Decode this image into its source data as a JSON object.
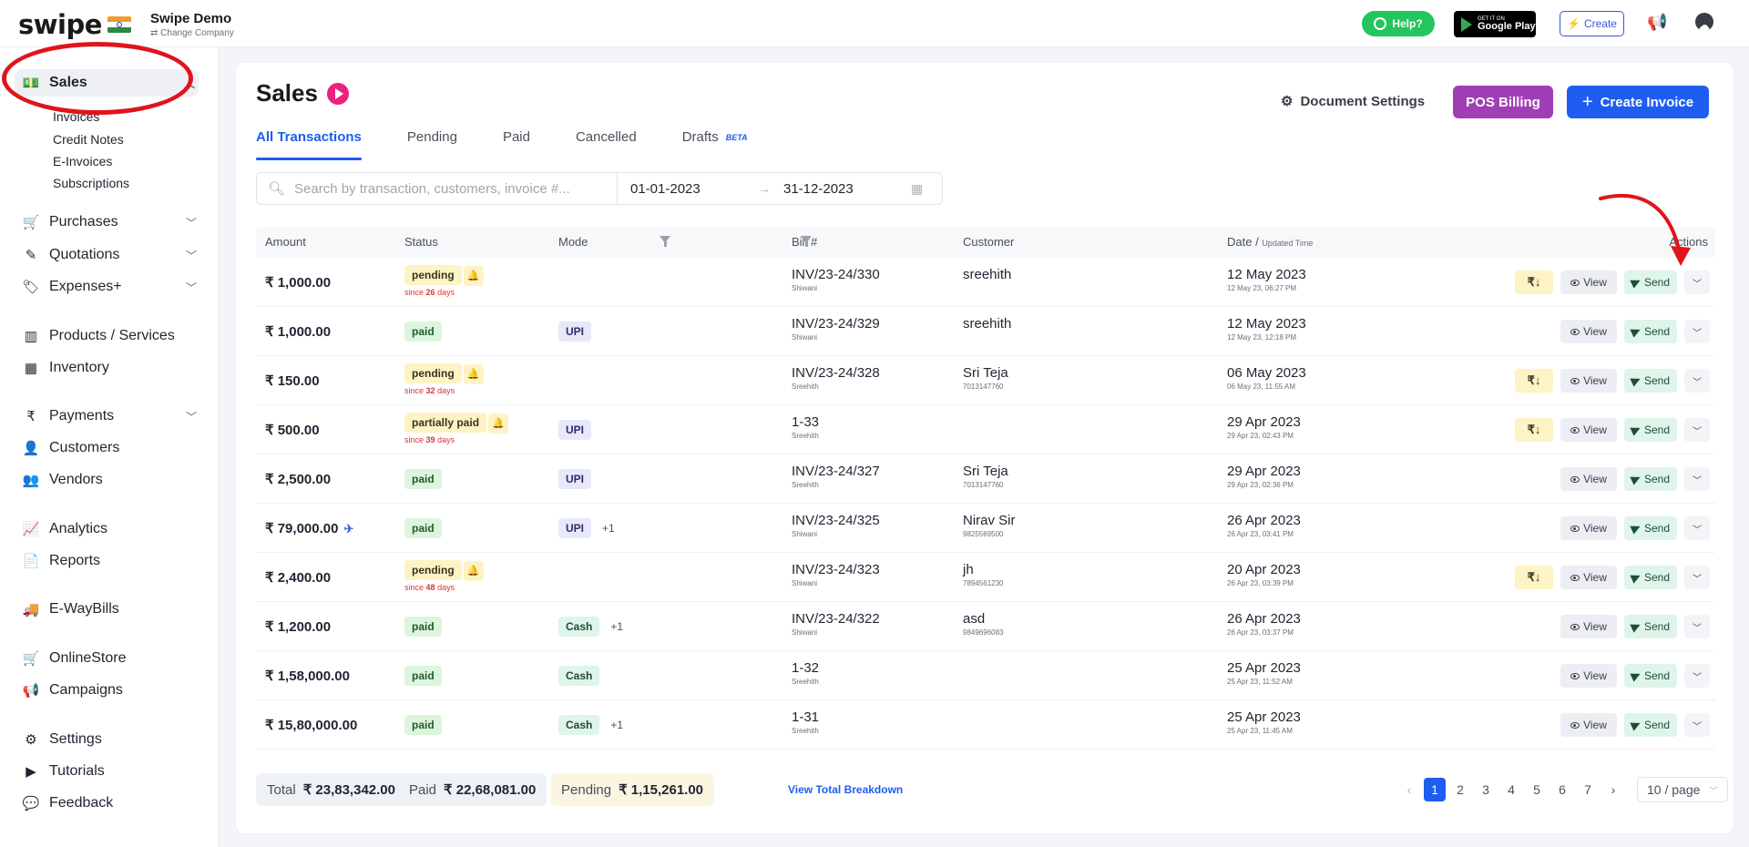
{
  "topbar": {
    "logo": "swipe",
    "company_name": "Swipe Demo",
    "change_company": "⇄ Change Company",
    "help_label": "Help?",
    "gplay_small": "GET IT ON",
    "gplay_big": "Google Play",
    "create_label": "Create"
  },
  "sidebar": {
    "sales": "Sales",
    "sub": [
      "Invoices",
      "Credit Notes",
      "E-Invoices",
      "Subscriptions"
    ],
    "items": [
      "Purchases",
      "Quotations",
      "Expenses+",
      "Products / Services",
      "Inventory",
      "Payments",
      "Customers",
      "Vendors",
      "Analytics",
      "Reports",
      "E-WayBills",
      "OnlineStore",
      "Campaigns",
      "Settings",
      "Tutorials",
      "Feedback"
    ]
  },
  "main": {
    "title": "Sales",
    "doc_settings": "Document Settings",
    "pos_billing": "POS Billing",
    "create_invoice": "Create Invoice",
    "tabs": [
      "All Transactions",
      "Pending",
      "Paid",
      "Cancelled",
      "Drafts"
    ],
    "beta": "BETA",
    "search_placeholder": "Search by transaction, customers, invoice #...",
    "date_from": "01-01-2023",
    "date_to": "31-12-2023"
  },
  "table": {
    "headers": {
      "amount": "Amount",
      "status": "Status",
      "mode": "Mode",
      "bill": "Bill #",
      "customer": "Customer",
      "date": "Date /",
      "date_small": "Updated Time",
      "actions": "Actions"
    },
    "rows": [
      {
        "amount": "₹ 1,000.00",
        "status": "pending",
        "since_prefix": "since",
        "since_days": "26",
        "since_suffix": "days",
        "mode": "",
        "mode_extra": "",
        "bill": "INV/23-24/330",
        "bill_by": "Shiwani",
        "customer": "sreehith",
        "phone": "",
        "date": "12 May 2023",
        "updated": "12 May 23, 06:27 PM"
      },
      {
        "amount": "₹ 1,000.00",
        "status": "paid",
        "mode": "UPI",
        "mode_extra": "",
        "bill": "INV/23-24/329",
        "bill_by": "Shiwani",
        "customer": "sreehith",
        "phone": "",
        "date": "12 May 2023",
        "updated": "12 May 23, 12:18 PM"
      },
      {
        "amount": "₹ 150.00",
        "status": "pending",
        "since_prefix": "since",
        "since_days": "32",
        "since_suffix": "days",
        "mode": "",
        "mode_extra": "",
        "bill": "INV/23-24/328",
        "bill_by": "Sreehith",
        "customer": "Sri Teja",
        "phone": "7013147760",
        "date": "06 May 2023",
        "updated": "06 May 23, 11:55 AM"
      },
      {
        "amount": "₹ 500.00",
        "status": "partially paid",
        "since_prefix": "since",
        "since_days": "39",
        "since_suffix": "days",
        "mode": "UPI",
        "mode_extra": "",
        "bill": "1-33",
        "bill_by": "Sreehith",
        "customer": "",
        "phone": "",
        "date": "29 Apr 2023",
        "updated": "29 Apr 23, 02:43 PM"
      },
      {
        "amount": "₹ 2,500.00",
        "status": "paid",
        "mode": "UPI",
        "mode_extra": "",
        "bill": "INV/23-24/327",
        "bill_by": "Sreehith",
        "customer": "Sri Teja",
        "phone": "7013147760",
        "date": "29 Apr 2023",
        "updated": "29 Apr 23, 02:36 PM"
      },
      {
        "amount": "₹ 79,000.00",
        "status": "paid",
        "mode": "UPI",
        "mode_extra": "+1",
        "bill": "INV/23-24/325",
        "bill_by": "Shiwani",
        "customer": "Nirav Sir",
        "phone": "9825569500",
        "date": "26 Apr 2023",
        "updated": "26 Apr 23, 03:41 PM"
      },
      {
        "amount": "₹ 2,400.00",
        "status": "pending",
        "since_prefix": "since",
        "since_days": "48",
        "since_suffix": "days",
        "mode": "",
        "mode_extra": "",
        "bill": "INV/23-24/323",
        "bill_by": "Shiwani",
        "customer": "jh",
        "phone": "7894561230",
        "date": "20 Apr 2023",
        "updated": "26 Apr 23, 03:39 PM"
      },
      {
        "amount": "₹ 1,200.00",
        "status": "paid",
        "mode": "Cash",
        "mode_extra": "+1",
        "bill": "INV/23-24/322",
        "bill_by": "Shiwani",
        "customer": "asd",
        "phone": "9849696083",
        "date": "26 Apr 2023",
        "updated": "26 Apr 23, 03:37 PM"
      },
      {
        "amount": "₹ 1,58,000.00",
        "status": "paid",
        "mode": "Cash",
        "mode_extra": "",
        "bill": "1-32",
        "bill_by": "Sreehith",
        "customer": "",
        "phone": "",
        "date": "25 Apr 2023",
        "updated": "25 Apr 23, 11:52 AM"
      },
      {
        "amount": "₹ 15,80,000.00",
        "status": "paid",
        "mode": "Cash",
        "mode_extra": "+1",
        "bill": "1-31",
        "bill_by": "Sreehith",
        "customer": "",
        "phone": "",
        "date": "25 Apr 2023",
        "updated": "25 Apr 23, 11:45 AM"
      }
    ],
    "action_labels": {
      "rs": "₹↓",
      "view": "View",
      "send": "Send"
    }
  },
  "footer": {
    "total_label": "Total",
    "total_value": "₹ 23,83,342.00",
    "paid_label": "Paid",
    "paid_value": "₹ 22,68,081.00",
    "pending_label": "Pending",
    "pending_value": "₹ 1,15,261.00",
    "breakdown": "View Total Breakdown",
    "pages": [
      "1",
      "2",
      "3",
      "4",
      "5",
      "6",
      "7"
    ],
    "current_page": "1",
    "page_size": "10 / page"
  },
  "colors": {
    "accent": "#1f5df1",
    "pos": "#a03fb5",
    "annotation": "#e0141b"
  }
}
